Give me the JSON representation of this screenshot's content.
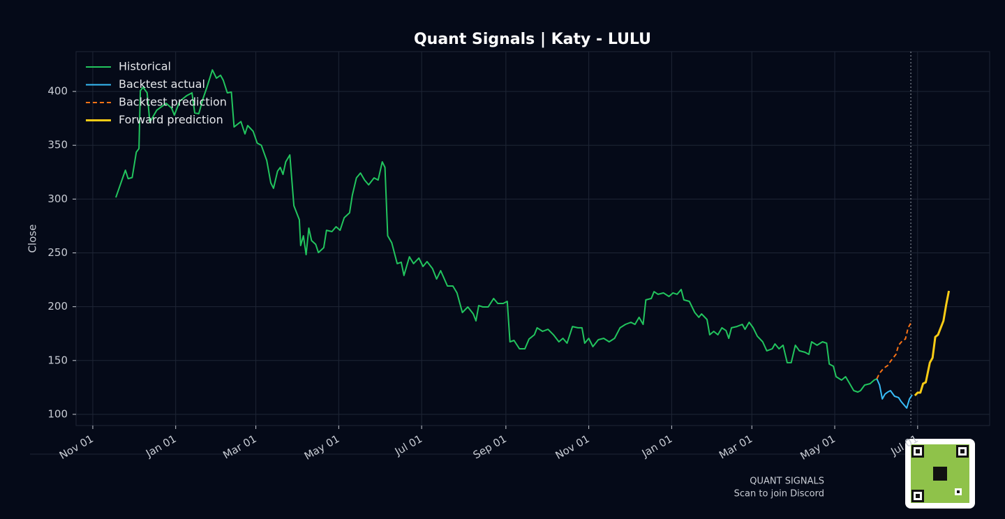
{
  "chart_data": {
    "type": "line",
    "title": "Quant Signals | Katy - LULU",
    "ylabel": "Close",
    "xlim": [
      -12.3,
      660
    ],
    "ylim": [
      89.6,
      437
    ],
    "xticks": [
      {
        "value": 0,
        "label": "Nov 01"
      },
      {
        "value": 61,
        "label": "Jan 01"
      },
      {
        "value": 120,
        "label": "Mar 01"
      },
      {
        "value": 181,
        "label": "May 01"
      },
      {
        "value": 242,
        "label": "Jul 01"
      },
      {
        "value": 304,
        "label": "Sep 01"
      },
      {
        "value": 365,
        "label": "Nov 01"
      },
      {
        "value": 426,
        "label": "Jan 01"
      },
      {
        "value": 485,
        "label": "Mar 01"
      },
      {
        "value": 546,
        "label": "May 01"
      },
      {
        "value": 607,
        "label": "Jul 01"
      }
    ],
    "yticks": [
      100,
      150,
      200,
      250,
      300,
      350,
      400
    ],
    "grid": true,
    "legend": "upper left",
    "cutoff_x": 602,
    "series": [
      {
        "name": "Historical",
        "color": "#22c55e",
        "width": 2,
        "dash": false,
        "x": [
          17,
          22,
          24,
          26,
          29,
          32,
          34,
          35,
          37,
          40,
          42,
          47,
          54,
          58,
          60,
          64,
          69,
          73,
          75,
          78,
          81,
          84,
          88,
          91,
          94,
          96,
          99,
          102,
          104,
          109,
          112,
          114,
          118,
          121,
          124,
          128,
          131,
          133,
          136,
          138,
          140,
          142,
          145,
          148,
          152,
          153,
          155,
          157,
          159,
          161,
          164,
          166,
          170,
          172,
          176,
          179,
          182,
          185,
          189,
          191,
          194,
          197,
          200,
          203,
          207,
          210,
          213,
          215,
          217,
          220,
          224,
          227,
          229,
          233,
          236,
          240,
          243,
          246,
          250,
          253,
          256,
          261,
          265,
          268,
          272,
          276,
          280,
          282,
          284,
          287,
          291,
          295,
          298,
          302,
          305,
          307,
          310,
          314,
          318,
          321,
          325,
          327,
          331,
          335,
          339,
          343,
          346,
          349,
          353,
          357,
          360,
          362,
          365,
          368,
          372,
          376,
          380,
          384,
          388,
          392,
          396,
          399,
          402,
          405,
          407,
          411,
          413,
          416,
          420,
          424,
          427,
          430,
          433,
          435,
          439,
          443,
          446,
          448,
          452,
          454,
          457,
          460,
          463,
          466,
          468,
          470,
          474,
          478,
          480,
          483,
          486,
          489,
          493,
          496,
          500,
          502,
          505,
          508,
          511,
          514,
          517,
          520,
          524,
          527,
          529,
          533,
          537,
          540,
          542,
          545,
          547,
          551,
          554,
          557,
          560,
          563,
          565,
          568,
          572,
          575,
          577
        ],
        "values": [
          301.5,
          319.7,
          326.8,
          319,
          320,
          343.6,
          346.9,
          400.7,
          403.9,
          398.7,
          371.5,
          382.5,
          389,
          384.5,
          378,
          391,
          396,
          398.7,
          380,
          379.3,
          392.9,
          403.9,
          420,
          412.3,
          415,
          410.4,
          398.7,
          399.4,
          367,
          372,
          360.5,
          368.3,
          363,
          352,
          350,
          335.9,
          315,
          310,
          326,
          329.4,
          322.9,
          334.6,
          341,
          293.8,
          280.8,
          256.8,
          265.9,
          248.4,
          273,
          261.4,
          258,
          250.3,
          254.9,
          271,
          269.8,
          274.3,
          271,
          282.7,
          287.3,
          303.5,
          319.7,
          324.2,
          317.7,
          313.2,
          319.7,
          317.7,
          334.6,
          329.4,
          265.9,
          259.4,
          240,
          241.3,
          229,
          246.4,
          240,
          245.2,
          237.4,
          241.9,
          235.4,
          225.7,
          233.5,
          219.2,
          219.2,
          212.8,
          194.6,
          199.8,
          193.3,
          186.8,
          201,
          199.8,
          199.8,
          207.6,
          203,
          203,
          205,
          167.4,
          168.7,
          160.9,
          160.9,
          170,
          173.9,
          180.4,
          177.1,
          179,
          173.9,
          167.4,
          170.6,
          166.1,
          181.6,
          180.4,
          180.4,
          166.1,
          170.6,
          162.9,
          169.3,
          170.6,
          167.4,
          170.6,
          180.4,
          183.6,
          185.5,
          183.6,
          190.1,
          183.6,
          206.3,
          207.6,
          214,
          211.5,
          212.8,
          209.5,
          212.8,
          211.5,
          216,
          206.3,
          205,
          194.6,
          190.1,
          193.3,
          188.1,
          173.9,
          177.1,
          173.9,
          180.4,
          177.8,
          170.6,
          180.4,
          181.6,
          183.6,
          179,
          185.5,
          180.4,
          172.6,
          167.4,
          159,
          160.9,
          165.4,
          160.9,
          164.2,
          148,
          148,
          164.2,
          159,
          157.7,
          155.7,
          167.4,
          164.2,
          167.4,
          166.1,
          146.7,
          144.7,
          135,
          131.8,
          135,
          128.5,
          122,
          120.7,
          122,
          127.2,
          128.5,
          131.8,
          133
        ]
      },
      {
        "name": "Backtest actual",
        "color": "#38bdf8",
        "width": 2,
        "dash": false,
        "x": [
          577,
          579,
          581,
          583,
          585,
          587,
          590,
          593,
          595,
          599,
          601,
          603
        ],
        "values": [
          133,
          127.2,
          114.3,
          118.8,
          120.7,
          122,
          116.8,
          115.6,
          111.7,
          105.8,
          114.3,
          118.1
        ]
      },
      {
        "name": "Backtest prediction",
        "color": "#f97316",
        "width": 2,
        "dash": true,
        "x": [
          577,
          579,
          582,
          585,
          587,
          591,
          593,
          596,
          598,
          600,
          602
        ],
        "values": [
          133,
          138.2,
          142.8,
          145.4,
          149.2,
          155.7,
          164.2,
          168.7,
          170,
          180.4,
          184.9
        ]
      },
      {
        "name": "Forward prediction",
        "color": "#facc15",
        "width": 3,
        "dash": false,
        "x": [
          605,
          607,
          609,
          611,
          613,
          616,
          618,
          620,
          622,
          626,
          628,
          630
        ],
        "values": [
          117.5,
          120.1,
          120.1,
          128.5,
          129.8,
          148,
          152.5,
          171.9,
          173.9,
          186.8,
          201.7,
          214.7
        ]
      }
    ]
  },
  "footer": {
    "brand": "QUANT SIGNALS",
    "caption": "Scan to join Discord"
  }
}
